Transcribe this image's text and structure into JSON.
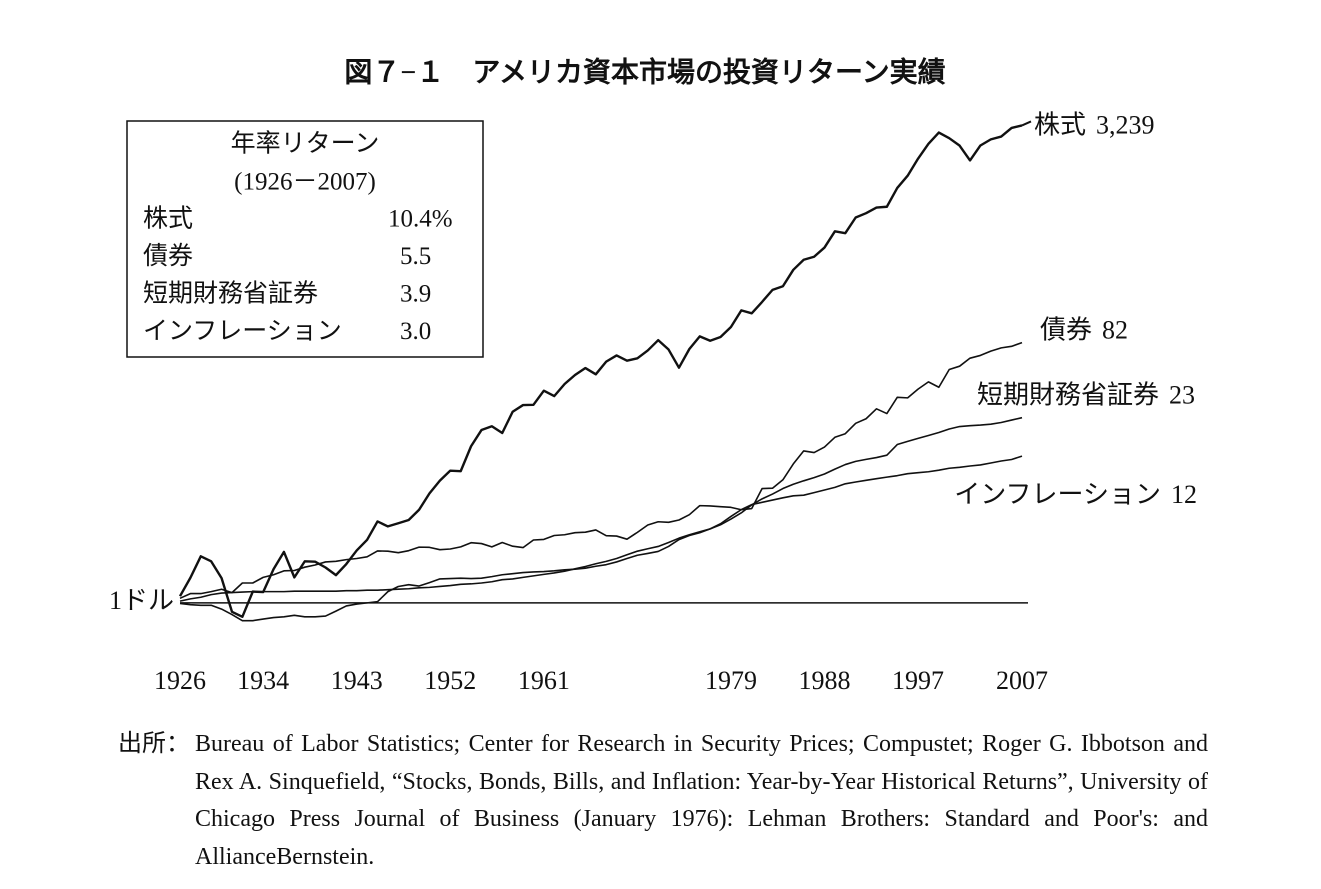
{
  "chart_data": {
    "type": "line",
    "title": "図７−１　アメリカ資本市場の投資リターン実績",
    "log_scale": true,
    "xlim": [
      1926,
      2007
    ],
    "xticks": [
      1926,
      1934,
      1943,
      1952,
      1961,
      1979,
      1988,
      1997,
      2007
    ],
    "ylim": [
      0.4,
      4000
    ],
    "yticks": [
      {
        "value": 1,
        "label": "1ドル"
      }
    ],
    "x": [
      1926,
      1927,
      1928,
      1929,
      1930,
      1931,
      1932,
      1933,
      1934,
      1935,
      1936,
      1937,
      1938,
      1939,
      1940,
      1941,
      1942,
      1943,
      1944,
      1945,
      1946,
      1947,
      1948,
      1949,
      1950,
      1951,
      1952,
      1953,
      1954,
      1955,
      1956,
      1957,
      1958,
      1959,
      1960,
      1961,
      1962,
      1963,
      1964,
      1965,
      1966,
      1967,
      1968,
      1969,
      1970,
      1971,
      1972,
      1973,
      1974,
      1975,
      1976,
      1977,
      1978,
      1979,
      1980,
      1981,
      1982,
      1983,
      1984,
      1985,
      1986,
      1987,
      1988,
      1989,
      1990,
      1991,
      1992,
      1993,
      1994,
      1995,
      1996,
      1997,
      1998,
      1999,
      2000,
      2001,
      2002,
      2003,
      2004,
      2005,
      2006,
      2007
    ],
    "series": [
      {
        "name": "株式",
        "color": "#111111",
        "end_label": "3,239",
        "values": [
          1.12,
          1.53,
          2.2,
          2.02,
          1.52,
          0.86,
          0.79,
          1.21,
          1.2,
          1.77,
          2.37,
          1.54,
          2.02,
          2.01,
          1.82,
          1.6,
          1.93,
          2.43,
          2.91,
          3.97,
          3.65,
          3.85,
          4.07,
          4.84,
          6.39,
          7.93,
          9.38,
          9.29,
          14.18,
          18.66,
          19.88,
          17.74,
          25.44,
          28.48,
          28.61,
          36.31,
          33.14,
          40.69,
          47.4,
          53.3,
          47.94,
          59.44,
          66.01,
          60.4,
          62.82,
          71.81,
          85.44,
          72.91,
          53.62,
          73.57,
          91.15,
          84.6,
          90.16,
          106.8,
          141.5,
          134.6,
          163.4,
          200.3,
          212.8,
          281.2,
          333.4,
          350.9,
          410,
          539.5,
          522.7,
          681.6,
          733.6,
          807.5,
          818,
          1125,
          1384,
          1846,
          2374,
          2874,
          2612,
          2302,
          1793,
          2308,
          2559,
          2684,
          3108,
          3239
        ]
      },
      {
        "name": "債券",
        "color": "#111111",
        "values": [
          1.08,
          1.17,
          1.17,
          1.21,
          1.26,
          1.19,
          1.4,
          1.4,
          1.54,
          1.61,
          1.72,
          1.73,
          1.83,
          1.9,
          2,
          2.02,
          2.08,
          2.12,
          2.18,
          2.41,
          2.4,
          2.34,
          2.42,
          2.57,
          2.56,
          2.46,
          2.49,
          2.58,
          2.77,
          2.73,
          2.58,
          2.78,
          2.61,
          2.55,
          2.9,
          2.93,
          3.13,
          3.17,
          3.28,
          3.31,
          3.44,
          3.12,
          3.1,
          2.94,
          3.3,
          3.74,
          3.95,
          3.91,
          4.07,
          4.45,
          5.19,
          5.16,
          5.1,
          5.04,
          4.84,
          4.94,
          6.93,
          6.97,
          8.04,
          10.52,
          13.1,
          12.75,
          13.98,
          16.51,
          17.53,
          20.91,
          22.59,
          26.72,
          24.66,
          32.47,
          32.17,
          37.3,
          42.17,
          38.5,
          52,
          55,
          63,
          66,
          71,
          75,
          77,
          82
        ]
      },
      {
        "name": "短期財務省証券",
        "color": "#111111",
        "values": [
          1.03,
          1.07,
          1.1,
          1.15,
          1.18,
          1.19,
          1.2,
          1.21,
          1.21,
          1.21,
          1.21,
          1.22,
          1.22,
          1.22,
          1.22,
          1.22,
          1.23,
          1.23,
          1.24,
          1.24,
          1.25,
          1.26,
          1.27,
          1.29,
          1.3,
          1.32,
          1.34,
          1.37,
          1.38,
          1.4,
          1.43,
          1.48,
          1.5,
          1.54,
          1.58,
          1.62,
          1.66,
          1.71,
          1.78,
          1.85,
          1.94,
          2.02,
          2.12,
          2.26,
          2.4,
          2.5,
          2.6,
          2.78,
          2.99,
          3.17,
          3.33,
          3.5,
          3.75,
          4.13,
          4.59,
          5.26,
          5.82,
          6.31,
          6.93,
          7.45,
          7.9,
          8.33,
          8.86,
          9.63,
          10.4,
          10.98,
          11.36,
          11.71,
          12.19,
          14.6,
          15.4,
          16.2,
          17,
          17.9,
          19,
          19.8,
          20.1,
          20.3,
          20.6,
          21.2,
          22.1,
          23
        ]
      },
      {
        "name": "インフレーション",
        "color": "#111111",
        "values": [
          0.99,
          0.97,
          0.96,
          0.96,
          0.9,
          0.82,
          0.74,
          0.74,
          0.76,
          0.78,
          0.79,
          0.81,
          0.79,
          0.79,
          0.8,
          0.87,
          0.95,
          0.98,
          1,
          1.02,
          1.21,
          1.32,
          1.36,
          1.33,
          1.41,
          1.5,
          1.51,
          1.52,
          1.51,
          1.52,
          1.56,
          1.61,
          1.64,
          1.67,
          1.69,
          1.7,
          1.72,
          1.75,
          1.77,
          1.8,
          1.86,
          1.91,
          2,
          2.12,
          2.24,
          2.31,
          2.39,
          2.6,
          2.92,
          3.13,
          3.28,
          3.5,
          3.82,
          4.32,
          4.85,
          5.28,
          5.49,
          5.7,
          5.92,
          6.13,
          6.19,
          6.47,
          6.76,
          7.07,
          7.51,
          7.74,
          7.97,
          8.19,
          8.41,
          8.62,
          8.91,
          9.06,
          9.21,
          9.45,
          9.77,
          9.92,
          10.15,
          10.34,
          10.68,
          11.05,
          11.33,
          12
        ]
      }
    ],
    "annual_returns": {
      "title": "年率リターン",
      "period": "(1926－2007)",
      "rows": [
        {
          "name": "株式",
          "value": "10.4%"
        },
        {
          "name": "債券",
          "value": "5.5"
        },
        {
          "name": "短期財務省証券",
          "value": "3.9"
        },
        {
          "name": "インフレーション",
          "value": "3.0"
        }
      ]
    },
    "source_label": "出所：",
    "source": "Bureau of Labor Statistics; Center for Research in Security Prices; Compustet; Roger G. Ibbotson and Rex A. Sinquefield, “Stocks, Bonds, Bills, and Inflation: Year-by-Year Historical Returns”, University of Chicago Press Journal of Business (January 1976): Lehman Brothers: Standard and Poor's: and AllianceBernstein."
  }
}
